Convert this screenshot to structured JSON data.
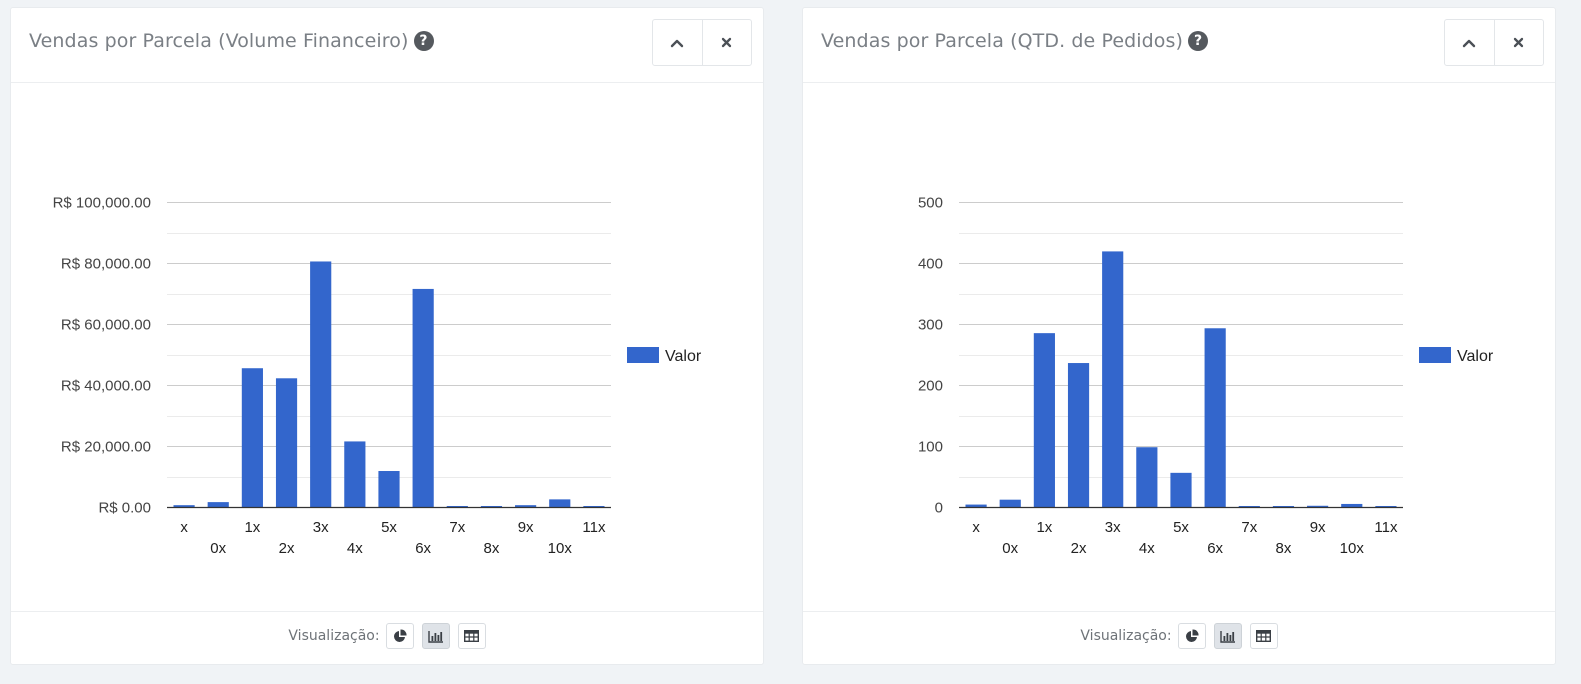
{
  "panels": [
    {
      "title": "Vendas por Parcela (Volume Financeiro)",
      "help": "?",
      "footer_label": "Visualização:",
      "chart_data": {
        "type": "bar",
        "categories": [
          "x",
          "0x",
          "1x",
          "2x",
          "3x",
          "4x",
          "5x",
          "6x",
          "7x",
          "8x",
          "9x",
          "10x",
          "11x"
        ],
        "series": [
          {
            "name": "Valor",
            "color": "#3366cc",
            "values": [
              600,
              1600,
              45500,
              42200,
              80500,
              21500,
              11800,
              71500,
              250,
              150,
              600,
              2500,
              150
            ]
          }
        ],
        "yticks": [
          0,
          20000,
          40000,
          60000,
          80000,
          100000
        ],
        "ytick_labels": [
          "R$ 0.00",
          "R$ 20,000.00",
          "R$ 40,000.00",
          "R$ 60,000.00",
          "R$ 80,000.00",
          "R$ 100,000.00"
        ],
        "ylim": [
          0,
          100000
        ],
        "minor_gridlines": true,
        "legend_position": "right",
        "title": "",
        "xlabel": "",
        "ylabel": ""
      }
    },
    {
      "title": "Vendas por Parcela (QTD. de Pedidos)",
      "help": "?",
      "footer_label": "Visualização:",
      "chart_data": {
        "type": "bar",
        "categories": [
          "x",
          "0x",
          "1x",
          "2x",
          "3x",
          "4x",
          "5x",
          "6x",
          "7x",
          "8x",
          "9x",
          "10x",
          "11x"
        ],
        "series": [
          {
            "name": "Valor",
            "color": "#3366cc",
            "values": [
              4,
              12,
              285,
              236,
              419,
              98,
              56,
              293,
              1,
              1,
              2,
              5,
              1
            ]
          }
        ],
        "yticks": [
          0,
          100,
          200,
          300,
          400,
          500
        ],
        "ytick_labels": [
          "0",
          "100",
          "200",
          "300",
          "400",
          "500"
        ],
        "ylim": [
          0,
          500
        ],
        "minor_gridlines": true,
        "legend_position": "right",
        "title": "",
        "xlabel": "",
        "ylabel": ""
      }
    }
  ],
  "icons": {
    "collapse": "chevron-up-icon",
    "close": "close-icon",
    "viz_pie": "pie-chart-icon",
    "viz_bar": "bar-chart-icon",
    "viz_table": "table-icon"
  },
  "colors": {
    "bar": "#3366cc",
    "title": "#7a7f85",
    "background": "#f0f3f6"
  }
}
